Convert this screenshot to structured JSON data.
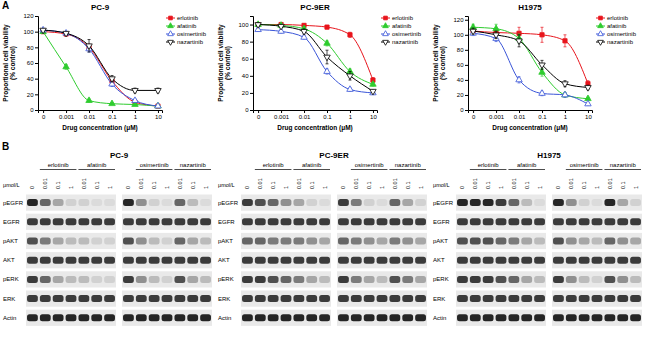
{
  "panel_labels": [
    "A",
    "B"
  ],
  "chart_data": [
    {
      "type": "line",
      "title": "PC-9",
      "x_label": "Drug concentration (μM)",
      "y_label": "Proportional cell viability (% control)",
      "log": "x",
      "grid": false,
      "legend": "right",
      "x": [
        0.0001,
        0.001,
        0.01,
        0.1,
        1,
        10
      ],
      "xlim": [
        6e-05,
        15
      ],
      "xticks": [
        {
          "value": 0.0001,
          "label": "0"
        },
        0.001,
        0.01,
        0.1,
        1,
        10
      ],
      "ylim": [
        0,
        120
      ],
      "yticks": [
        0,
        20,
        40,
        60,
        80,
        100,
        120
      ],
      "series": [
        {
          "name": "erlotinib",
          "color": "#e8141c",
          "marker": "square",
          "values": [
            100,
            97,
            80,
            37,
            10,
            5
          ],
          "errors": [
            2,
            2,
            4,
            3,
            2,
            1
          ]
        },
        {
          "name": "afatinib",
          "color": "#2ecc2e",
          "marker": "triangle",
          "values": [
            100,
            55,
            12,
            8,
            7,
            5
          ],
          "errors": [
            2,
            3,
            2,
            1,
            1,
            1
          ]
        },
        {
          "name": "osimertinib",
          "color": "#3a55d8",
          "marker": "triangle-open",
          "values": [
            102,
            98,
            78,
            33,
            12,
            5
          ],
          "errors": [
            2,
            2,
            4,
            3,
            2,
            1
          ]
        },
        {
          "name": "nazartinib",
          "color": "#000000",
          "marker": "triangle-down-open",
          "values": [
            102,
            98,
            82,
            40,
            25,
            25
          ],
          "errors": [
            2,
            2,
            8,
            4,
            3,
            3
          ]
        }
      ]
    },
    {
      "type": "line",
      "title": "PC-9ER",
      "x_label": "Drug concentration (μM)",
      "y_label": "Proportional cell viability (% control)",
      "log": "x",
      "grid": false,
      "legend": "right",
      "x": [
        0.0001,
        0.001,
        0.01,
        0.1,
        1,
        10
      ],
      "xlim": [
        6e-05,
        15
      ],
      "xticks": [
        {
          "value": 0.0001,
          "label": "0"
        },
        0.001,
        0.01,
        0.1,
        1,
        10
      ],
      "ylim": [
        0,
        110
      ],
      "yticks": [
        0,
        20,
        40,
        60,
        80,
        100
      ],
      "series": [
        {
          "name": "erlotinib",
          "color": "#e8141c",
          "marker": "square",
          "values": [
            100,
            100,
            99,
            97,
            88,
            35
          ],
          "errors": [
            2,
            2,
            2,
            2,
            3,
            3
          ]
        },
        {
          "name": "afatinib",
          "color": "#2ecc2e",
          "marker": "triangle",
          "values": [
            100,
            99,
            95,
            78,
            45,
            30
          ],
          "errors": [
            2,
            2,
            2,
            3,
            3,
            2
          ]
        },
        {
          "name": "osimertinib",
          "color": "#3a55d8",
          "marker": "triangle-open",
          "values": [
            94,
            92,
            85,
            45,
            24,
            20
          ],
          "errors": [
            2,
            2,
            2,
            3,
            2,
            2
          ]
        },
        {
          "name": "nazartinib",
          "color": "#000000",
          "marker": "triangle-down-open",
          "values": [
            100,
            98,
            92,
            62,
            40,
            22
          ],
          "errors": [
            2,
            2,
            3,
            8,
            5,
            2
          ]
        }
      ]
    },
    {
      "type": "line",
      "title": "H1975",
      "x_label": "Drug concentration (μM)",
      "y_label": "Proportional cell viability (% control)",
      "log": "x",
      "grid": false,
      "legend": "right",
      "x": [
        0.0001,
        0.001,
        0.01,
        0.1,
        1,
        10
      ],
      "xlim": [
        6e-05,
        15
      ],
      "xticks": [
        {
          "value": 0.0001,
          "label": "0"
        },
        0.001,
        0.01,
        0.1,
        1,
        10
      ],
      "ylim": [
        0,
        125
      ],
      "yticks": [
        0,
        20,
        40,
        60,
        80,
        100,
        120
      ],
      "series": [
        {
          "name": "erlotinib",
          "color": "#e8141c",
          "marker": "square",
          "values": [
            105,
            103,
            102,
            100,
            92,
            35
          ],
          "errors": [
            3,
            4,
            8,
            10,
            8,
            4
          ]
        },
        {
          "name": "afatinib",
          "color": "#2ecc2e",
          "marker": "triangle",
          "values": [
            110,
            108,
            95,
            50,
            20,
            15
          ],
          "errors": [
            4,
            6,
            6,
            5,
            3,
            2
          ]
        },
        {
          "name": "osimertinib",
          "color": "#3a55d8",
          "marker": "triangle-open",
          "values": [
            102,
            95,
            40,
            22,
            20,
            8
          ],
          "errors": [
            3,
            4,
            4,
            3,
            3,
            2
          ]
        },
        {
          "name": "nazartinib",
          "color": "#000000",
          "marker": "triangle-down-open",
          "values": [
            105,
            100,
            92,
            60,
            35,
            30
          ],
          "errors": [
            4,
            5,
            8,
            6,
            4,
            3
          ]
        }
      ]
    }
  ],
  "blots": {
    "unit": "μmol/L",
    "rows": [
      "pEGFR",
      "EGFR",
      "pAKT",
      "AKT",
      "pERK",
      "ERK",
      "Actin"
    ],
    "panels": [
      {
        "title": "PC-9",
        "blocks": [
          {
            "drugs": [
              "erlotinib",
              "afatinib"
            ],
            "lanes": [
              "0",
              "0.01",
              "0.1",
              "1",
              "0.01",
              "0.1",
              "1"
            ],
            "intensity": [
              [
                0.9,
                0.6,
                0.3,
                0.1,
                0.1,
                0.05,
                0.05
              ],
              [
                0.8,
                0.8,
                0.8,
                0.8,
                0.8,
                0.8,
                0.8
              ],
              [
                0.7,
                0.5,
                0.3,
                0.2,
                0.2,
                0.1,
                0.1
              ],
              [
                0.8,
                0.8,
                0.8,
                0.8,
                0.8,
                0.8,
                0.8
              ],
              [
                0.8,
                0.6,
                0.3,
                0.2,
                0.2,
                0.1,
                0.1
              ],
              [
                0.8,
                0.8,
                0.8,
                0.8,
                0.8,
                0.8,
                0.8
              ],
              [
                0.9,
                0.9,
                0.9,
                0.9,
                0.9,
                0.9,
                0.9
              ]
            ]
          },
          {
            "drugs": [
              "osimertinib",
              "nazartinib"
            ],
            "lanes": [
              "0",
              "0.01",
              "0.1",
              "1",
              "0.01",
              "0.1",
              "1"
            ],
            "intensity": [
              [
                0.9,
                0.4,
                0.1,
                0.05,
                0.6,
                0.2,
                0.05
              ],
              [
                0.8,
                0.8,
                0.8,
                0.8,
                0.8,
                0.8,
                0.8
              ],
              [
                0.7,
                0.4,
                0.2,
                0.1,
                0.6,
                0.3,
                0.2
              ],
              [
                0.8,
                0.8,
                0.8,
                0.8,
                0.8,
                0.8,
                0.8
              ],
              [
                0.8,
                0.4,
                0.2,
                0.1,
                0.7,
                0.3,
                0.2
              ],
              [
                0.8,
                0.8,
                0.8,
                0.8,
                0.8,
                0.8,
                0.8
              ],
              [
                0.9,
                0.9,
                0.9,
                0.9,
                0.9,
                0.9,
                0.9
              ]
            ]
          }
        ]
      },
      {
        "title": "PC-9ER",
        "blocks": [
          {
            "drugs": [
              "erlotinib",
              "afatinib"
            ],
            "lanes": [
              "0",
              "0.01",
              "0.1",
              "1",
              "0.01",
              "0.1",
              "1"
            ],
            "intensity": [
              [
                0.8,
                0.7,
                0.6,
                0.4,
                0.3,
                0.1,
                0.05
              ],
              [
                0.8,
                0.8,
                0.8,
                0.8,
                0.8,
                0.8,
                0.8
              ],
              [
                0.6,
                0.6,
                0.5,
                0.5,
                0.5,
                0.4,
                0.3
              ],
              [
                0.8,
                0.8,
                0.8,
                0.8,
                0.8,
                0.8,
                0.8
              ],
              [
                0.8,
                0.8,
                0.7,
                0.6,
                0.5,
                0.3,
                0.2
              ],
              [
                0.8,
                0.8,
                0.8,
                0.8,
                0.8,
                0.8,
                0.8
              ],
              [
                0.9,
                0.9,
                0.9,
                0.9,
                0.9,
                0.9,
                0.9
              ]
            ]
          },
          {
            "drugs": [
              "osimertinib",
              "nazartinib"
            ],
            "lanes": [
              "0",
              "0.01",
              "0.1",
              "1",
              "0.01",
              "0.1",
              "1"
            ],
            "intensity": [
              [
                0.8,
                0.5,
                0.1,
                0.05,
                0.6,
                0.3,
                0.1
              ],
              [
                0.8,
                0.8,
                0.8,
                0.8,
                0.8,
                0.8,
                0.8
              ],
              [
                0.6,
                0.5,
                0.4,
                0.3,
                0.5,
                0.4,
                0.3
              ],
              [
                0.8,
                0.8,
                0.8,
                0.8,
                0.8,
                0.8,
                0.8
              ],
              [
                0.8,
                0.5,
                0.3,
                0.2,
                0.7,
                0.5,
                0.3
              ],
              [
                0.8,
                0.8,
                0.8,
                0.8,
                0.8,
                0.8,
                0.8
              ],
              [
                0.9,
                0.9,
                0.9,
                0.9,
                0.9,
                0.9,
                0.9
              ]
            ]
          }
        ]
      },
      {
        "title": "H1975",
        "blocks": [
          {
            "drugs": [
              "erlotinib",
              "afatinib"
            ],
            "lanes": [
              "0",
              "0.01",
              "0.1",
              "1",
              "0.01",
              "0.1",
              "1"
            ],
            "intensity": [
              [
                0.9,
                0.9,
                0.9,
                0.8,
                0.6,
                0.2,
                0.05
              ],
              [
                0.8,
                0.8,
                0.8,
                0.8,
                0.8,
                0.8,
                0.8
              ],
              [
                0.7,
                0.7,
                0.7,
                0.6,
                0.5,
                0.3,
                0.2
              ],
              [
                0.8,
                0.8,
                0.8,
                0.8,
                0.8,
                0.8,
                0.8
              ],
              [
                0.8,
                0.8,
                0.8,
                0.7,
                0.6,
                0.3,
                0.2
              ],
              [
                0.8,
                0.8,
                0.8,
                0.8,
                0.8,
                0.8,
                0.8
              ],
              [
                0.9,
                0.9,
                0.9,
                0.9,
                0.9,
                0.9,
                0.9
              ]
            ]
          },
          {
            "drugs": [
              "osimertinib",
              "nazartinib"
            ],
            "lanes": [
              "0",
              "0.01",
              "0.1",
              "1",
              "0.01",
              "0.1",
              "1"
            ],
            "intensity": [
              [
                0.9,
                0.4,
                0.1,
                0.05,
                0.9,
                0.3,
                0.1
              ],
              [
                0.8,
                0.8,
                0.8,
                0.8,
                0.8,
                0.8,
                0.8
              ],
              [
                0.7,
                0.4,
                0.3,
                0.2,
                0.6,
                0.4,
                0.3
              ],
              [
                0.8,
                0.8,
                0.8,
                0.8,
                0.8,
                0.8,
                0.8
              ],
              [
                0.8,
                0.4,
                0.2,
                0.1,
                0.7,
                0.4,
                0.2
              ],
              [
                0.8,
                0.8,
                0.8,
                0.8,
                0.8,
                0.8,
                0.8
              ],
              [
                0.9,
                0.9,
                0.9,
                0.9,
                0.9,
                0.9,
                0.9
              ]
            ]
          }
        ]
      }
    ]
  }
}
